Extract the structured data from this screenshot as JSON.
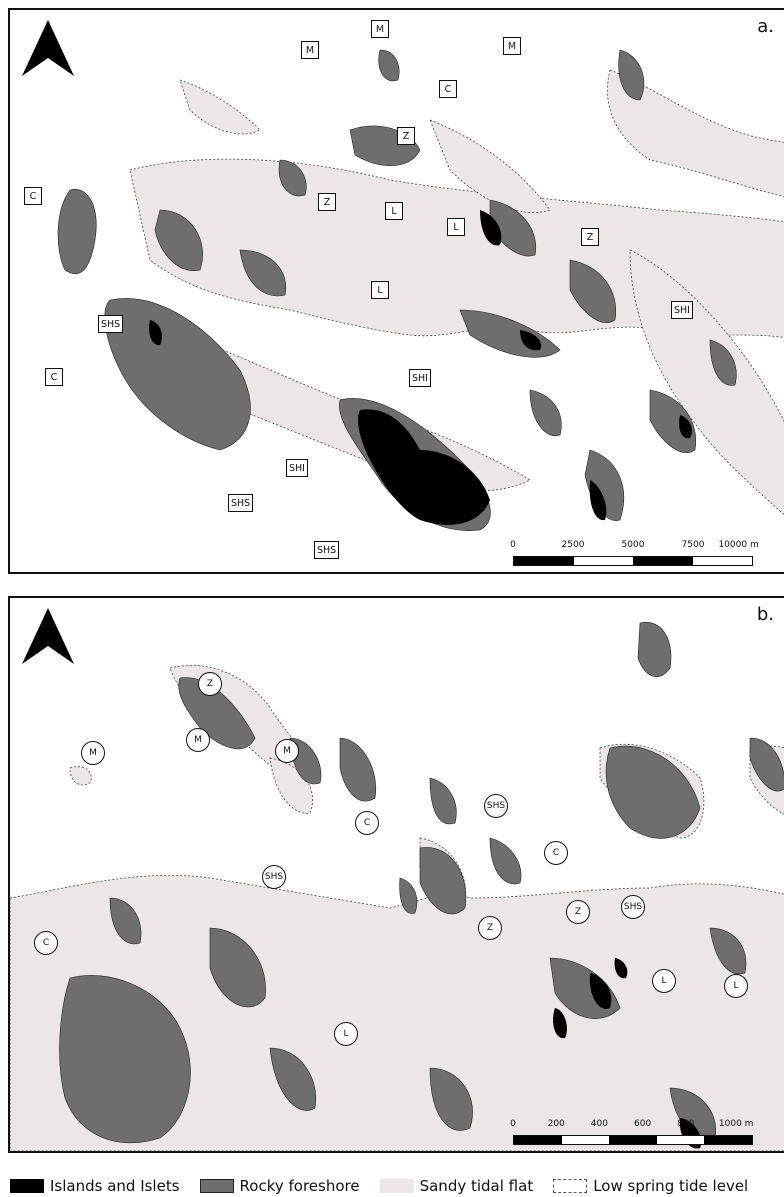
{
  "panel_a": {
    "label": "a.",
    "square_labels": [
      "M",
      "M",
      "M",
      "C",
      "Z",
      "C",
      "Z",
      "L",
      "L",
      "Z",
      "L",
      "SHS",
      "SHI",
      "C",
      "SHI",
      "SHI",
      "SHS",
      "SHS"
    ],
    "scale": {
      "ticks": [
        "0",
        "2500",
        "5000",
        "7500",
        "10000 m"
      ]
    }
  },
  "panel_b": {
    "label": "b.",
    "circle_labels": [
      "Z",
      "M",
      "M",
      "M",
      "C",
      "SHS",
      "C",
      "SHS",
      "Z",
      "Z",
      "SHS",
      "C",
      "L",
      "L",
      "L"
    ],
    "scale": {
      "ticks": [
        "0",
        "200",
        "400",
        "600",
        "800",
        "1000 m"
      ]
    }
  },
  "legend": [
    {
      "label": "Islands and Islets",
      "color": "#000000",
      "icon": "solid-black-swatch"
    },
    {
      "label": "Rocky foreshore",
      "color": "#6e6e6e",
      "icon": "dark-grey-swatch"
    },
    {
      "label": "Sandy tidal flat",
      "color": "#ece6e6",
      "icon": "light-pink-swatch"
    },
    {
      "label": "Low spring tide level",
      "color": "#555555",
      "icon": "dashed-outline-swatch"
    }
  ],
  "colors": {
    "rock": "#6e6e6e",
    "sand": "#ece6e6",
    "island": "#000000",
    "outline": "#222222"
  }
}
